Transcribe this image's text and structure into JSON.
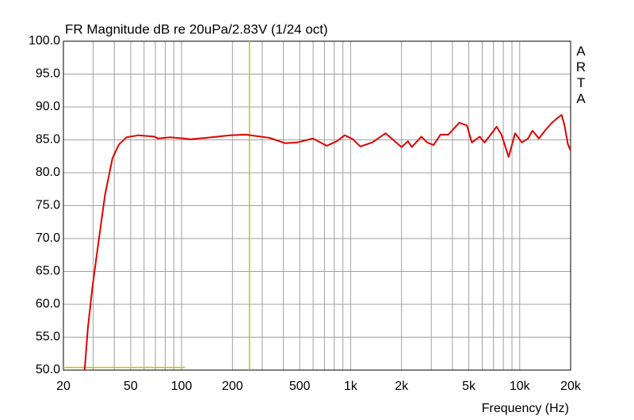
{
  "chart_data": {
    "type": "line",
    "title": "FR Magnitude dB re 20uPa/2.83V (1/24 oct)",
    "side_label": "ARTA",
    "x_label": "Frequency (Hz)",
    "x_scale": "log",
    "xlim": [
      20,
      20000
    ],
    "xticks": [
      20,
      50,
      100,
      200,
      500,
      {
        "value": 1000,
        "label": "1k"
      },
      {
        "value": 2000,
        "label": "2k"
      },
      {
        "value": 5000,
        "label": "5k"
      },
      {
        "value": 10000,
        "label": "10k"
      },
      {
        "value": 20000,
        "label": "20k"
      }
    ],
    "x_grid": [
      30,
      40,
      60,
      70,
      80,
      90,
      300,
      400,
      600,
      700,
      800,
      900,
      3000,
      4000,
      6000,
      7000,
      8000,
      9000
    ],
    "ylim": [
      50,
      100
    ],
    "yticks": [
      {
        "value": 50,
        "label": "50.0"
      },
      {
        "value": 55,
        "label": "55.0"
      },
      {
        "value": 60,
        "label": "60.0"
      },
      {
        "value": 65,
        "label": "65.0"
      },
      {
        "value": 70,
        "label": "70.0"
      },
      {
        "value": 75,
        "label": "75.0"
      },
      {
        "value": 80,
        "label": "80.0"
      },
      {
        "value": 85,
        "label": "85.0"
      },
      {
        "value": 90,
        "label": "90.0"
      },
      {
        "value": 95,
        "label": "95.0"
      },
      {
        "value": 100,
        "label": "100.0"
      }
    ],
    "grid": true,
    "cursor_x": 252,
    "marker_line": {
      "x": [
        20,
        105
      ],
      "y": 50.4
    },
    "x": [
      26.7,
      27.9,
      29.8,
      32.5,
      35.3,
      39.0,
      42.6,
      47.3,
      55.7,
      69.0,
      72.6,
      85.6,
      103,
      113,
      139,
      193,
      240,
      332,
      410,
      481,
      598,
      722,
      829,
      923,
      1030,
      1140,
      1340,
      1610,
      1860,
      2000,
      2180,
      2300,
      2620,
      2840,
      3090,
      3400,
      3780,
      4390,
      4870,
      5210,
      5800,
      6200,
      6600,
      7300,
      7800,
      8600,
      9400,
      10300,
      11200,
      11900,
      13000,
      14100,
      15500,
      16500,
      17700,
      18400,
      19300,
      20000
    ],
    "series": [
      {
        "color": "#e00000",
        "values": [
          50,
          56.3,
          62.9,
          70.1,
          76.7,
          82.2,
          84.3,
          85.4,
          85.7,
          85.5,
          85.2,
          85.4,
          85.2,
          85.1,
          85.3,
          85.7,
          85.8,
          85.3,
          84.5,
          84.6,
          85.2,
          84.1,
          84.8,
          85.7,
          85.1,
          84.0,
          84.6,
          86.0,
          84.6,
          83.9,
          84.8,
          83.9,
          85.5,
          84.6,
          84.2,
          85.8,
          85.8,
          87.6,
          87.2,
          84.6,
          85.5,
          84.6,
          85.5,
          87.0,
          85.8,
          82.4,
          86.0,
          84.6,
          85.2,
          86.4,
          85.2,
          86.4,
          87.6,
          88.2,
          88.8,
          87.2,
          84.3,
          83.4
        ]
      }
    ]
  }
}
